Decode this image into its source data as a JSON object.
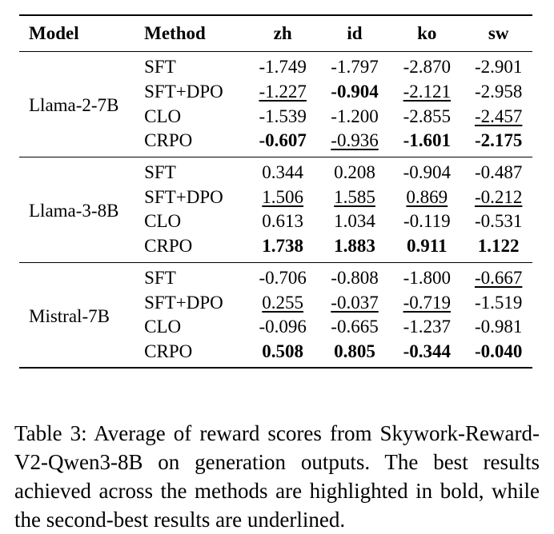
{
  "table": {
    "headers": {
      "model": "Model",
      "method": "Method",
      "zh": "zh",
      "id": "id",
      "ko": "ko",
      "sw": "sw"
    },
    "groups": [
      {
        "model": "Llama-2-7B",
        "rows": [
          {
            "method": "SFT",
            "zh": "-1.749",
            "id": "-1.797",
            "ko": "-2.870",
            "sw": "-2.901",
            "style": {
              "zh": "",
              "id": "",
              "ko": "",
              "sw": ""
            }
          },
          {
            "method": "SFT+DPO",
            "zh": "-1.227",
            "id": "-0.904",
            "ko": "-2.121",
            "sw": "-2.958",
            "style": {
              "zh": "second",
              "id": "best",
              "ko": "second",
              "sw": ""
            }
          },
          {
            "method": "CLO",
            "zh": "-1.539",
            "id": "-1.200",
            "ko": "-2.855",
            "sw": "-2.457",
            "style": {
              "zh": "",
              "id": "",
              "ko": "",
              "sw": "second"
            }
          },
          {
            "method": "CRPO",
            "zh": "-0.607",
            "id": "-0.936",
            "ko": "-1.601",
            "sw": "-2.175",
            "style": {
              "zh": "best",
              "id": "second",
              "ko": "best",
              "sw": "best"
            }
          }
        ]
      },
      {
        "model": "Llama-3-8B",
        "rows": [
          {
            "method": "SFT",
            "zh": "0.344",
            "id": "0.208",
            "ko": "-0.904",
            "sw": "-0.487",
            "style": {
              "zh": "",
              "id": "",
              "ko": "",
              "sw": ""
            }
          },
          {
            "method": "SFT+DPO",
            "zh": "1.506",
            "id": "1.585",
            "ko": "0.869",
            "sw": "-0.212",
            "style": {
              "zh": "second",
              "id": "second",
              "ko": "second",
              "sw": "second"
            }
          },
          {
            "method": "CLO",
            "zh": "0.613",
            "id": "1.034",
            "ko": "-0.119",
            "sw": "-0.531",
            "style": {
              "zh": "",
              "id": "",
              "ko": "",
              "sw": ""
            }
          },
          {
            "method": "CRPO",
            "zh": "1.738",
            "id": "1.883",
            "ko": "0.911",
            "sw": "1.122",
            "style": {
              "zh": "best",
              "id": "best",
              "ko": "best",
              "sw": "best"
            }
          }
        ]
      },
      {
        "model": "Mistral-7B",
        "rows": [
          {
            "method": "SFT",
            "zh": "-0.706",
            "id": "-0.808",
            "ko": "-1.800",
            "sw": "-0.667",
            "style": {
              "zh": "",
              "id": "",
              "ko": "",
              "sw": "second"
            }
          },
          {
            "method": "SFT+DPO",
            "zh": "0.255",
            "id": "-0.037",
            "ko": "-0.719",
            "sw": "-1.519",
            "style": {
              "zh": "second",
              "id": "second",
              "ko": "second",
              "sw": ""
            }
          },
          {
            "method": "CLO",
            "zh": "-0.096",
            "id": "-0.665",
            "ko": "-1.237",
            "sw": "-0.981",
            "style": {
              "zh": "",
              "id": "",
              "ko": "",
              "sw": ""
            }
          },
          {
            "method": "CRPO",
            "zh": "0.508",
            "id": "0.805",
            "ko": "-0.344",
            "sw": "-0.040",
            "style": {
              "zh": "best",
              "id": "best",
              "ko": "best",
              "sw": "best"
            }
          }
        ]
      }
    ]
  },
  "caption": "Table 3: Average of reward scores from Skywork-Reward-V2-Qwen3-8B on generation outputs. The best results achieved across the methods are highlighted in bold, while the second-best results are underlined."
}
